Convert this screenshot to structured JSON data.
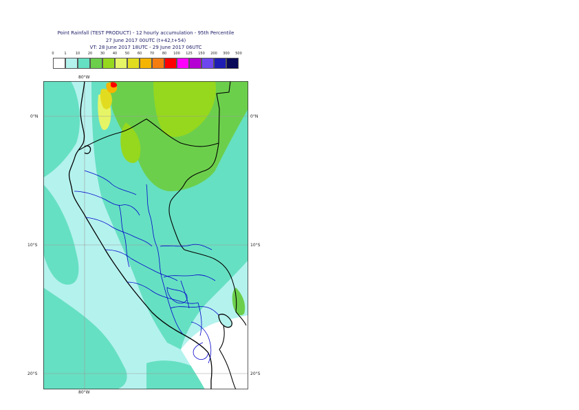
{
  "title": {
    "line1": "Point Rainfall (TEST PRODUCT) - 12 hourly accumulation - 95th Percentile",
    "line2": "27 June 2017 00UTC (t+42,t+54)",
    "line3": "VT: 28 June 2017 18UTC - 29 June 2017 06UTC"
  },
  "legend": {
    "ticks": [
      "0",
      "1",
      "10",
      "20",
      "30",
      "40",
      "50",
      "60",
      "70",
      "80",
      "100",
      "125",
      "150",
      "200",
      "300",
      "500"
    ],
    "colors": [
      "#ffffff",
      "#b4f2ee",
      "#66e0c2",
      "#6ccf4c",
      "#96d81e",
      "#e6f566",
      "#e1dc20",
      "#f5b400",
      "#f57d10",
      "#ff0000",
      "#ff00ff",
      "#b400d2",
      "#6e46f0",
      "#1e1eb4",
      "#0a0a5a"
    ]
  },
  "map": {
    "labels": {
      "lon_top": "80°W",
      "lon_bottom": "80°W",
      "lat_0_left": "0°N",
      "lat_0_right": "0°N",
      "lat_10_left": "10°S",
      "lat_10_right": "10°S",
      "lat_20_left": "20°S",
      "lat_20_right": "20°S"
    },
    "colors": {
      "sea": "#b4f2ee",
      "light": "#66e0c2",
      "green": "#6ccf4c",
      "lime": "#96d81e",
      "yellow": "#e6f566",
      "gold": "#e1dc20",
      "orange": "#f5b400",
      "red": "#ff0000",
      "land_white": "#ffffff",
      "coast": "#000000",
      "admin": "#0000cc",
      "grid": "#9a9a9a"
    }
  }
}
